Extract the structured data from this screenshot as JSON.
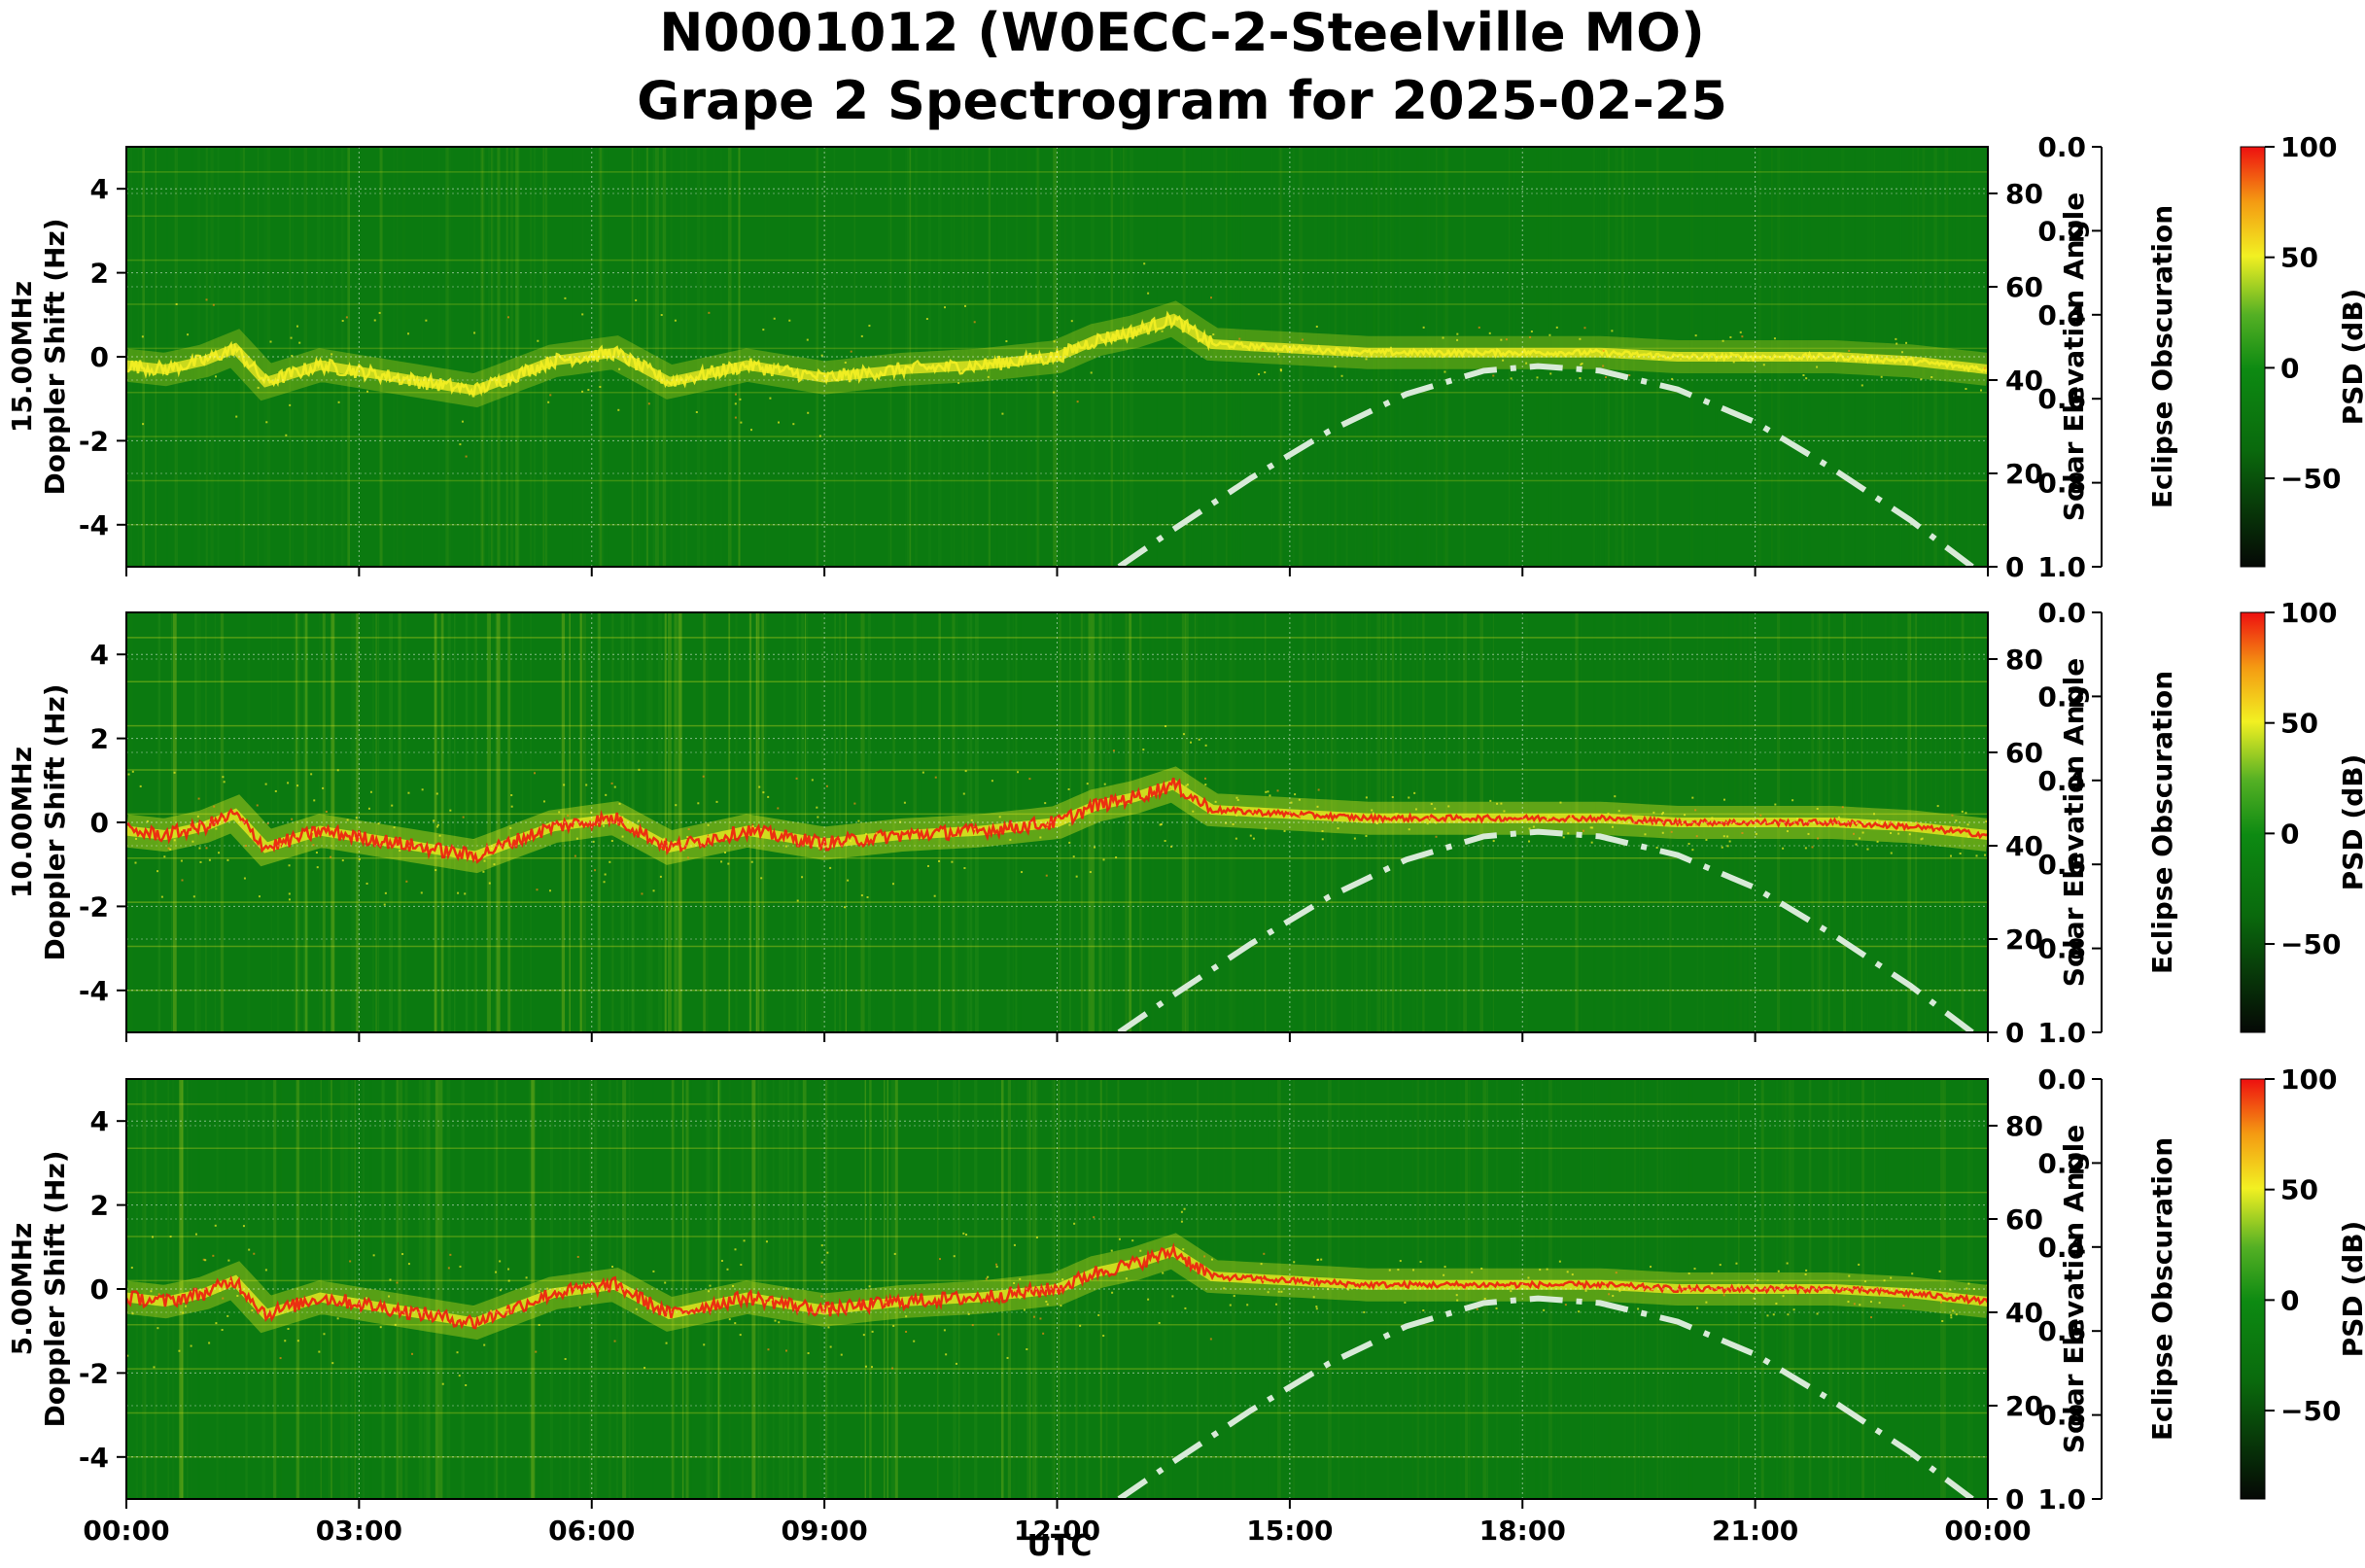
{
  "chart_data": {
    "type": "heatmap",
    "title": "N0001012 (W0ECC-2-Steelville MO)",
    "subtitle": "Grape 2 Spectrogram for 2025-02-25",
    "xlabel": "UTC",
    "x_ticks": [
      "00:00",
      "03:00",
      "06:00",
      "09:00",
      "12:00",
      "15:00",
      "18:00",
      "21:00",
      "00:00"
    ],
    "x_range_hours": [
      0,
      24
    ],
    "grid": true,
    "colors": {
      "background_green": "#0b7a10",
      "mid_green": "#3c9a1c",
      "yellow": "#f4ef22",
      "red": "#ee1c10",
      "solar_curve": "#d8ead8"
    },
    "panels": [
      {
        "ylabel": "15.00MHz\nDoppler Shift (Hz)",
        "ylim": [
          -5,
          5
        ],
        "y_ticks": [
          4,
          2,
          0,
          -2,
          -4
        ],
        "right_axis": {
          "label": "Solar Elevation Angle",
          "ticks": [
            80,
            60,
            40,
            20,
            0
          ],
          "range": [
            0,
            90
          ]
        },
        "eclipse_axis": {
          "label": "Eclipse Obscuration",
          "ticks": [
            0.0,
            0.2,
            0.4,
            0.6,
            0.8,
            1.0
          ],
          "range": [
            0,
            1
          ]
        },
        "colorbar": {
          "label": "PSD (dB)",
          "ticks": [
            100,
            50,
            0,
            -50
          ],
          "range": [
            -90,
            100
          ]
        },
        "activity": 0.35
      },
      {
        "ylabel": "10.00MHz\nDoppler Shift (Hz)",
        "ylim": [
          -5,
          5
        ],
        "y_ticks": [
          4,
          2,
          0,
          -2,
          -4
        ],
        "right_axis": {
          "label": "Solar Elevation Angle",
          "ticks": [
            80,
            60,
            40,
            20,
            0
          ],
          "range": [
            0,
            90
          ]
        },
        "eclipse_axis": {
          "label": "Eclipse Obscuration",
          "ticks": [
            0.0,
            0.2,
            0.4,
            0.6,
            0.8,
            1.0
          ],
          "range": [
            0,
            1
          ]
        },
        "colorbar": {
          "label": "PSD (dB)",
          "ticks": [
            100,
            50,
            0,
            -50
          ],
          "range": [
            -90,
            100
          ]
        },
        "activity": 0.75
      },
      {
        "ylabel": "5.00MHz\nDoppler Shift (Hz)",
        "ylim": [
          -5,
          5
        ],
        "y_ticks": [
          4,
          2,
          0,
          -2,
          -4
        ],
        "right_axis": {
          "label": "Solar Elevation Angle",
          "ticks": [
            80,
            60,
            40,
            20,
            0
          ],
          "range": [
            0,
            90
          ]
        },
        "eclipse_axis": {
          "label": "Eclipse Obscuration",
          "ticks": [
            0.0,
            0.2,
            0.4,
            0.6,
            0.8,
            1.0
          ],
          "range": [
            0,
            1
          ]
        },
        "colorbar": {
          "label": "PSD (dB)",
          "ticks": [
            100,
            50,
            0,
            -50
          ],
          "range": [
            -90,
            100
          ]
        },
        "activity": 0.6
      }
    ],
    "solar_elevation": {
      "hours": [
        12.8,
        13.5,
        14.5,
        15.5,
        16.5,
        17.5,
        18.2,
        19.0,
        20.0,
        21.0,
        22.0,
        23.0,
        23.8
      ],
      "degrees": [
        0,
        8,
        19,
        29,
        37,
        42,
        43,
        42,
        38,
        31,
        21,
        10,
        0
      ]
    },
    "carrier_trace": {
      "hours": [
        0,
        0.5,
        1.0,
        1.4,
        1.8,
        2.5,
        3.5,
        4.5,
        5.5,
        6.3,
        7.0,
        8.0,
        9.0,
        10.0,
        11.0,
        12.0,
        12.5,
        13.0,
        13.5,
        14.0,
        15.0,
        16.0,
        17.0,
        18.0,
        19.0,
        20.0,
        21.0,
        22.0,
        23.0,
        24.0
      ],
      "doppler_hz": [
        -0.2,
        -0.3,
        -0.1,
        0.2,
        -0.6,
        -0.2,
        -0.5,
        -0.8,
        -0.1,
        0.1,
        -0.6,
        -0.2,
        -0.5,
        -0.3,
        -0.2,
        0.0,
        0.4,
        0.6,
        0.9,
        0.3,
        0.2,
        0.1,
        0.1,
        0.1,
        0.1,
        0.0,
        0.0,
        0.0,
        -0.1,
        -0.3
      ]
    }
  }
}
